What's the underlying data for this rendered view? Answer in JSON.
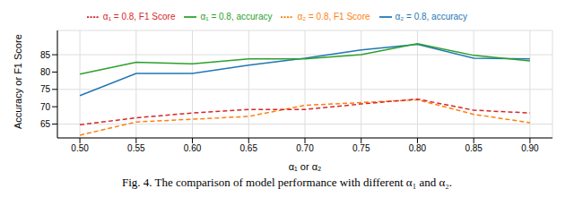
{
  "chart_data": {
    "type": "line",
    "caption": "Fig. 4.  The comparison of model performance with different α₁ and α₂.",
    "x_label": "α₁ or α₂",
    "y_label": "Accuracy or F1 Score",
    "x": [
      0.5,
      0.55,
      0.6,
      0.65,
      0.7,
      0.75,
      0.8,
      0.85,
      0.9
    ],
    "series": [
      {
        "name": "α₂ = 0.8, accuracy",
        "color": "#1f77b4",
        "line_style": "solid",
        "values": [
          73.2,
          79.6,
          79.6,
          82.0,
          84.0,
          86.4,
          88.0,
          84.0,
          83.8
        ]
      },
      {
        "name": "α₂ = 0.8, F1 Score",
        "color": "#ff7f0e",
        "line_style": "dashed",
        "values": [
          61.8,
          65.6,
          66.4,
          67.2,
          70.4,
          71.2,
          72.0,
          67.8,
          65.4
        ]
      },
      {
        "name": "α₁ = 0.8, accuracy",
        "color": "#2ca02c",
        "line_style": "solid",
        "values": [
          79.4,
          82.8,
          82.4,
          83.8,
          83.8,
          85.0,
          88.2,
          84.8,
          83.2
        ]
      },
      {
        "name": "α₁ = 0.8, F1 Score",
        "color": "#d62728",
        "line_style": "dashed",
        "values": [
          64.8,
          66.8,
          68.2,
          69.2,
          69.2,
          70.8,
          72.2,
          69.0,
          68.2
        ]
      }
    ],
    "xlim": [
      0.48,
      0.92
    ],
    "xticks": [
      {
        "value": 0.5,
        "label": "0.50"
      },
      {
        "value": 0.55,
        "label": "0.55"
      },
      {
        "value": 0.6,
        "label": "0.60"
      },
      {
        "value": 0.65,
        "label": "0.65"
      },
      {
        "value": 0.7,
        "label": "0.70"
      },
      {
        "value": 0.75,
        "label": "0.75"
      },
      {
        "value": 0.8,
        "label": "0.80"
      },
      {
        "value": 0.85,
        "label": "0.85"
      },
      {
        "value": 0.9,
        "label": "0.90"
      }
    ],
    "ylim": [
      61,
      92
    ],
    "yticks": [
      65,
      70,
      75,
      80,
      85
    ],
    "grid": true,
    "legend": "top"
  }
}
